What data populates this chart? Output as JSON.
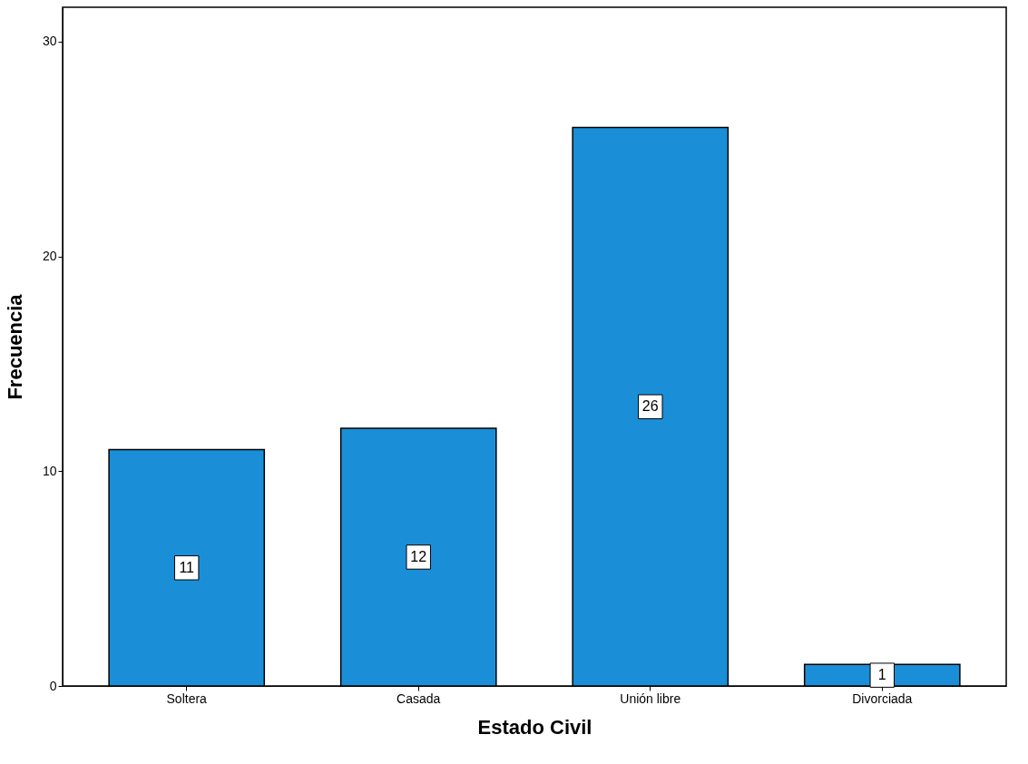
{
  "chart_data": {
    "type": "bar",
    "xlabel": "Estado Civil",
    "ylabel": "Frecuencia",
    "categories": [
      "Soltera",
      "Casada",
      "Unión libre",
      "Divorciada"
    ],
    "values": [
      11,
      12,
      26,
      1
    ],
    "color": "#1a8fd8",
    "ylim": [
      0,
      31.6
    ],
    "yticks": [
      0,
      10,
      20,
      30
    ],
    "grid": false,
    "data_labels": true
  }
}
